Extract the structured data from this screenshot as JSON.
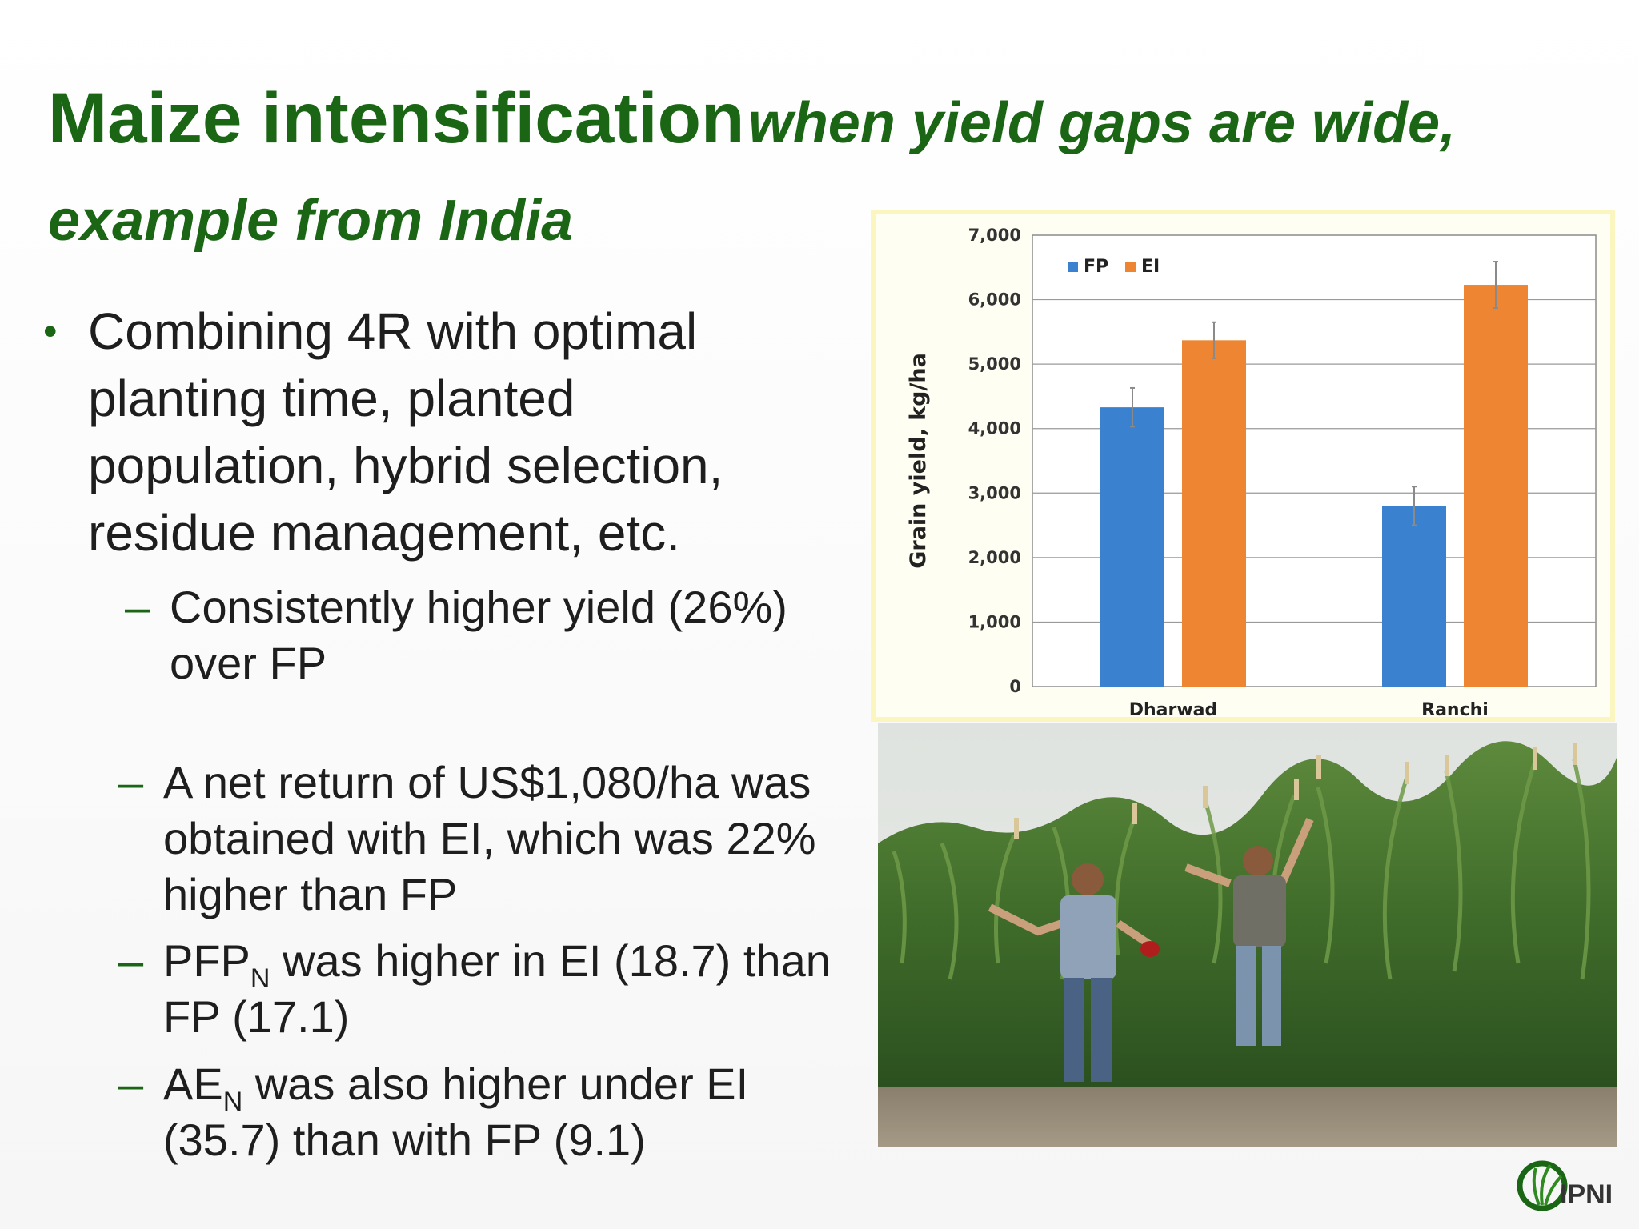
{
  "title": {
    "main": "Maize intensification",
    "sub_line1": "when yield gaps are wide,",
    "sub_line2": "example from India"
  },
  "bullet1": "Combining 4R with optimal planting time, planted population, hybrid selection, residue management, etc.",
  "subbullets": {
    "s1": "Consistently higher yield (26%) over FP",
    "s2": "A net return of US$1,080/ha was obtained with EI, which was 22% higher than FP",
    "s3_pre": "PFP",
    "s3_sub": "N",
    "s3_post": " was higher in EI (18.7) than FP (17.1)",
    "s4_pre": "AE",
    "s4_sub": "N",
    "s4_post": " was also higher under EI (35.7) than with FP (9.1)"
  },
  "chart_data": {
    "type": "bar",
    "title": "",
    "xlabel": "",
    "ylabel": "Grain yield, kg/ha",
    "ylim": [
      0,
      7000
    ],
    "yticks": [
      0,
      1000,
      2000,
      3000,
      4000,
      5000,
      6000,
      7000
    ],
    "ytick_labels": [
      "0",
      "1,000",
      "2,000",
      "3,000",
      "4,000",
      "5,000",
      "6,000",
      "7,000"
    ],
    "categories": [
      "Dharwad",
      "Ranchi"
    ],
    "series": [
      {
        "name": "FP",
        "color": "#3a82d0",
        "values": [
          4330,
          2800
        ],
        "errors": [
          300,
          300
        ]
      },
      {
        "name": "EI",
        "color": "#ed8532",
        "values": [
          5370,
          6230
        ],
        "errors": [
          280,
          360
        ]
      }
    ],
    "grid": true,
    "legend_position": "top-left"
  },
  "logo_text": "IPNI"
}
